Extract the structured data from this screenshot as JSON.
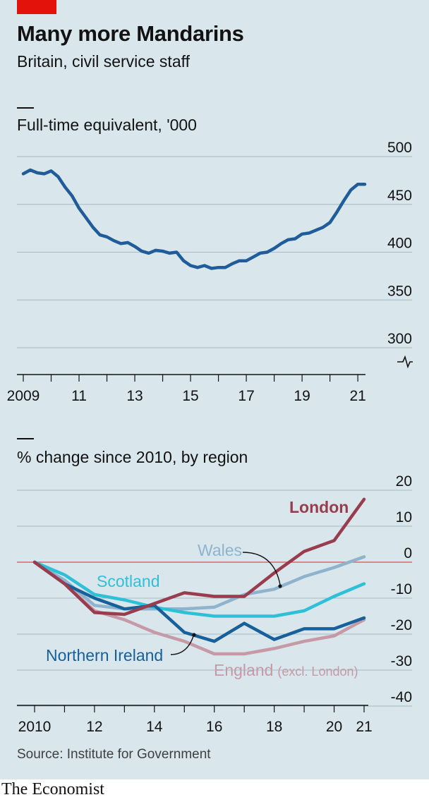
{
  "header": {
    "title": "Many more Mandarins",
    "subtitle": "Britain, civil service staff"
  },
  "footer": {
    "source": "Source: Institute for Government",
    "brand": "The Economist"
  },
  "colors": {
    "background": "#d9e7ed",
    "accent_red": "#e3120b",
    "top_line": "#1f5c99",
    "London": "#993c4d",
    "Wales": "#8fb3cc",
    "Scotland": "#2ec0d6",
    "Northern Ireland": "#17609a",
    "England": "#c599a6",
    "zero_line": "#d76969"
  },
  "chart_data": [
    {
      "type": "line",
      "title": "Full-time equivalent, '000",
      "x_tick_labels": [
        "2009",
        "11",
        "13",
        "15",
        "17",
        "19",
        "21"
      ],
      "x_ticks": [
        2009,
        2011,
        2013,
        2015,
        2017,
        2019,
        2021
      ],
      "y_tick_labels": [
        "500",
        "450",
        "400",
        "350",
        "300"
      ],
      "y_ticks": [
        500,
        450,
        400,
        350,
        300
      ],
      "ylim": [
        300,
        500
      ],
      "y_axis_break": true,
      "grid": true,
      "series": [
        {
          "x": [
            2009.0,
            2009.25,
            2009.5,
            2009.75,
            2010.0,
            2010.25,
            2010.5,
            2010.75,
            2011.0,
            2011.25,
            2011.5,
            2011.75,
            2012.0,
            2012.25,
            2012.5,
            2012.75,
            2013.0,
            2013.25,
            2013.5,
            2013.75,
            2014.0,
            2014.25,
            2014.5,
            2014.75,
            2015.0,
            2015.25,
            2015.5,
            2015.75,
            2016.0,
            2016.25,
            2016.5,
            2016.75,
            2017.0,
            2017.25,
            2017.5,
            2017.75,
            2018.0,
            2018.25,
            2018.5,
            2018.75,
            2019.0,
            2019.25,
            2019.5,
            2019.75,
            2020.0,
            2020.25,
            2020.5,
            2020.75,
            2021.0,
            2021.25
          ],
          "values": [
            482,
            486,
            483,
            482,
            485,
            479,
            468,
            459,
            446,
            436,
            426,
            418,
            416,
            412,
            409,
            410,
            406,
            401,
            399,
            402,
            401,
            399,
            400,
            391,
            386,
            384,
            386,
            383,
            384,
            384,
            388,
            391,
            391,
            395,
            399,
            400,
            404,
            409,
            413,
            414,
            419,
            420,
            423,
            426,
            431,
            442,
            454,
            465,
            471,
            471
          ]
        }
      ]
    },
    {
      "type": "line",
      "title": "% change since 2010, by region",
      "x_tick_labels": [
        "2010",
        "12",
        "14",
        "16",
        "18",
        "20",
        "21"
      ],
      "x_ticks": [
        2010,
        2012,
        2014,
        2016,
        2018,
        2020,
        2021
      ],
      "y_tick_labels": [
        "20",
        "10",
        "0",
        "-10",
        "-20",
        "-30",
        "-40"
      ],
      "y_ticks": [
        20,
        10,
        0,
        -10,
        -20,
        -30,
        -40
      ],
      "ylim": [
        -40,
        20
      ],
      "grid": true,
      "zero_line": true,
      "categories": [
        2010,
        2011,
        2012,
        2013,
        2014,
        2015,
        2016,
        2017,
        2018,
        2019,
        2020,
        2021
      ],
      "series": [
        {
          "name": "London",
          "label": "London",
          "values": [
            0,
            -6,
            -14,
            -14.5,
            -11.5,
            -8.5,
            -9.5,
            -9.5,
            -3,
            3,
            6,
            17.5
          ]
        },
        {
          "name": "Wales",
          "label": "Wales",
          "values": [
            0,
            -5,
            -12,
            -13,
            -13,
            -13,
            -12.5,
            -9,
            -7.5,
            -4,
            -1.5,
            1.5
          ]
        },
        {
          "name": "Scotland",
          "label": "Scotland",
          "values": [
            0,
            -3.5,
            -9,
            -10.5,
            -12.5,
            -14,
            -15,
            -15,
            -15,
            -13.5,
            -9.5,
            -6
          ]
        },
        {
          "name": "Northern Ireland",
          "label": "Northern Ireland",
          "values": [
            0,
            -6,
            -10,
            -13,
            -12,
            -19.5,
            -22,
            -17,
            -21.5,
            -18.5,
            -18.5,
            -15.5
          ]
        },
        {
          "name": "England",
          "label": "England",
          "label_note": "(excl. London)",
          "values": [
            0,
            -6,
            -13.5,
            -16,
            -19.5,
            -22,
            -25.5,
            -25.5,
            -24,
            -22,
            -20.5,
            -16
          ]
        }
      ]
    }
  ]
}
